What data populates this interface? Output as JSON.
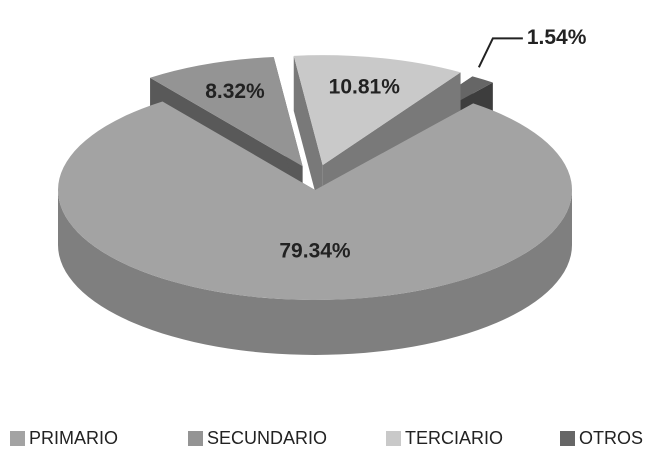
{
  "chart_data": {
    "type": "pie",
    "categories": [
      "PRIMARIO",
      "SECUNDARIO",
      "TERCIARIO",
      "OTROS"
    ],
    "values": [
      79.34,
      8.32,
      10.81,
      1.54
    ],
    "value_labels": [
      "79.34%",
      "8.32%",
      "10.81%",
      "1.54%"
    ],
    "colors": [
      "#a3a3a3",
      "#949494",
      "#c9c9c9",
      "#666666"
    ],
    "legend": "bottom"
  }
}
